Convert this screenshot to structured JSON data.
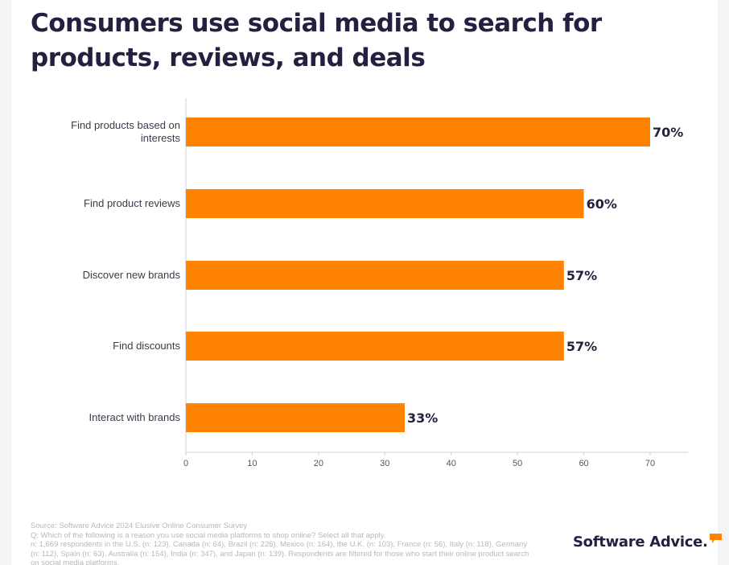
{
  "title": "Consumers use social media to search for products, reviews, and deals",
  "chart_data": {
    "type": "bar",
    "orientation": "horizontal",
    "categories": [
      [
        "Find products based on",
        "interests"
      ],
      [
        "Find product reviews"
      ],
      [
        "Discover new brands"
      ],
      [
        "Find discounts"
      ],
      [
        "Interact with brands"
      ]
    ],
    "values": [
      70,
      60,
      57,
      57,
      33
    ],
    "value_labels": [
      "70%",
      "60%",
      "57%",
      "57%",
      "33%"
    ],
    "xlim": [
      0,
      75
    ],
    "xticks": [
      0,
      10,
      20,
      30,
      40,
      50,
      60,
      70
    ],
    "title": "",
    "xlabel": "",
    "ylabel": "",
    "bar_color": "#ff8200",
    "grid": false
  },
  "footer": {
    "source": "Source: Software Advice 2024 Elusive Online Consumer Survey",
    "question": "Q: Which of the following is a reason you use social media platforms to shop online? Select all that apply.",
    "sample": "n: 1,669 respondents in the U.S. (n: 123), Canada (n: 64), Brazil (n: 226), Mexico (n: 164), the U.K. (n: 103), France (n: 56), Italy (n: 118), Germany (n: 112), Spain (n: 63), Australia (n: 154), India (n: 347), and Japan (n: 139). Respondents are filtered for those who start their online product search on social media platforms."
  },
  "logo": {
    "text": "Software Advice.",
    "accent_color": "#ff8200"
  },
  "colors": {
    "title": "#23213f",
    "axis": "#d0d0d6",
    "category_label": "#3a3a4a",
    "value_label": "#23213f"
  }
}
